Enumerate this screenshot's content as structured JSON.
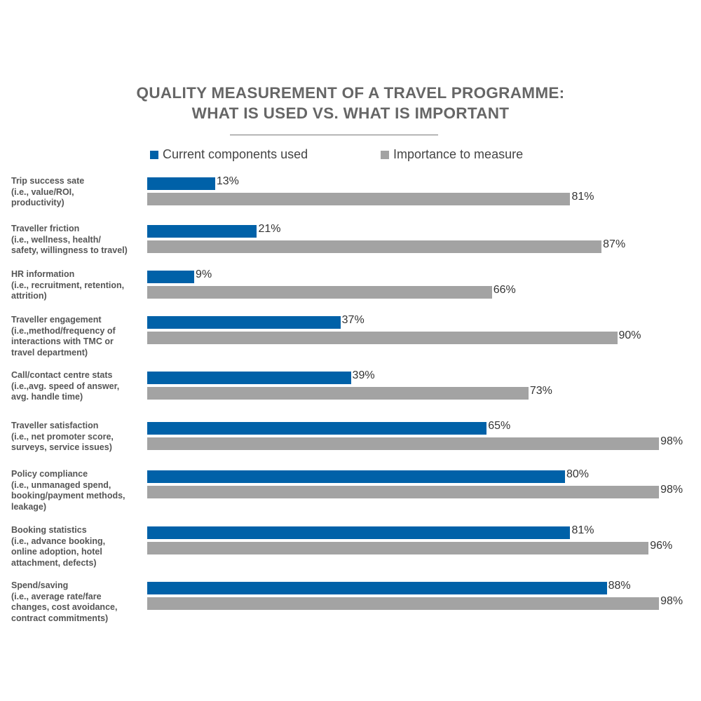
{
  "chart_data": {
    "type": "bar",
    "orientation": "horizontal",
    "title": [
      "QUALITY MEASUREMENT OF A TRAVEL PROGRAMME:",
      "WHAT IS USED VS. WHAT IS IMPORTANT"
    ],
    "xlabel": "",
    "ylabel": "",
    "xlim": [
      0,
      100
    ],
    "grid": false,
    "legend_position": "top",
    "colors": {
      "current": "#0061a8",
      "importance": "#a3a3a3"
    },
    "categories": [
      {
        "title": "Trip success sate",
        "sub": [
          "(i.e., value/ROI,",
          "productivity)"
        ]
      },
      {
        "title": "Traveller friction",
        "sub": [
          "(i.e., wellness, health/",
          "safety, willingness to travel)"
        ]
      },
      {
        "title": "HR information",
        "sub": [
          "(i.e., recruitment, retention,",
          "attrition)"
        ]
      },
      {
        "title": "Traveller engagement",
        "sub": [
          "(i.e.,method/frequency of",
          "interactions with TMC or",
          "travel department)"
        ]
      },
      {
        "title": "Call/contact centre stats",
        "sub": [
          "(i.e.,avg. speed of answer,",
          "avg. handle time)"
        ]
      },
      {
        "title": "Traveller satisfaction",
        "sub": [
          "(i.e., net promoter score,",
          "surveys, service issues)"
        ]
      },
      {
        "title": "Policy compliance",
        "sub": [
          "(i.e., unmanaged spend,",
          "booking/payment methods,",
          "leakage)"
        ]
      },
      {
        "title": "Booking statistics",
        "sub": [
          "(i.e., advance booking,",
          "online adoption, hotel",
          "attachment, defects)"
        ]
      },
      {
        "title": "Spend/saving",
        "sub": [
          "(i.e., average rate/fare",
          "changes, cost avoidance,",
          "contract commitments)"
        ]
      }
    ],
    "series": [
      {
        "name": "Current components used",
        "values": [
          13,
          21,
          9,
          37,
          39,
          65,
          80,
          81,
          88
        ]
      },
      {
        "name": "Importance to measure",
        "values": [
          81,
          87,
          66,
          90,
          73,
          98,
          98,
          96,
          98
        ]
      }
    ],
    "value_suffix": "%"
  }
}
